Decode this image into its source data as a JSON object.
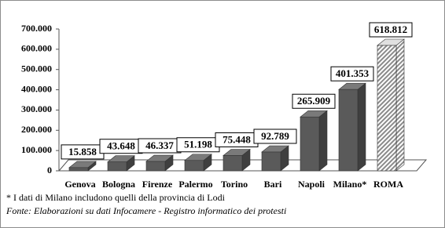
{
  "chart_data": {
    "type": "bar3d",
    "categories": [
      "Genova",
      "Bologna",
      "Firenze",
      "Palermo",
      "Torino",
      "Bari",
      "Napoli",
      "Milano*",
      "ROMA"
    ],
    "values": [
      15858,
      43648,
      46337,
      51198,
      75448,
      92789,
      265909,
      401353,
      618812
    ],
    "value_labels": [
      "15.858",
      "43.648",
      "46.337",
      "51.198",
      "75.448",
      "92.789",
      "265.909",
      "401.353",
      "618.812"
    ],
    "color": "#5a5a5a",
    "highlight_color": "#a0a0a0",
    "ylim": [
      0,
      700000
    ],
    "yticks": [
      0,
      {
        "value": 100000,
        "label": "100.000"
      },
      {
        "value": 200000,
        "label": "200.000"
      },
      {
        "value": 300000,
        "label": "300.000"
      },
      {
        "value": 400000,
        "label": "400.000"
      },
      {
        "value": 500000,
        "label": "500.000"
      },
      {
        "value": 600000,
        "label": "600.000"
      },
      {
        "value": 700000,
        "label": "700.000"
      }
    ],
    "grid": false,
    "footnote": "* I dati di Milano includono quelli della provincia di Lodi",
    "source": "Fonte:  Elaborazioni su dati Infocamere - Registro informatico dei protesti"
  }
}
